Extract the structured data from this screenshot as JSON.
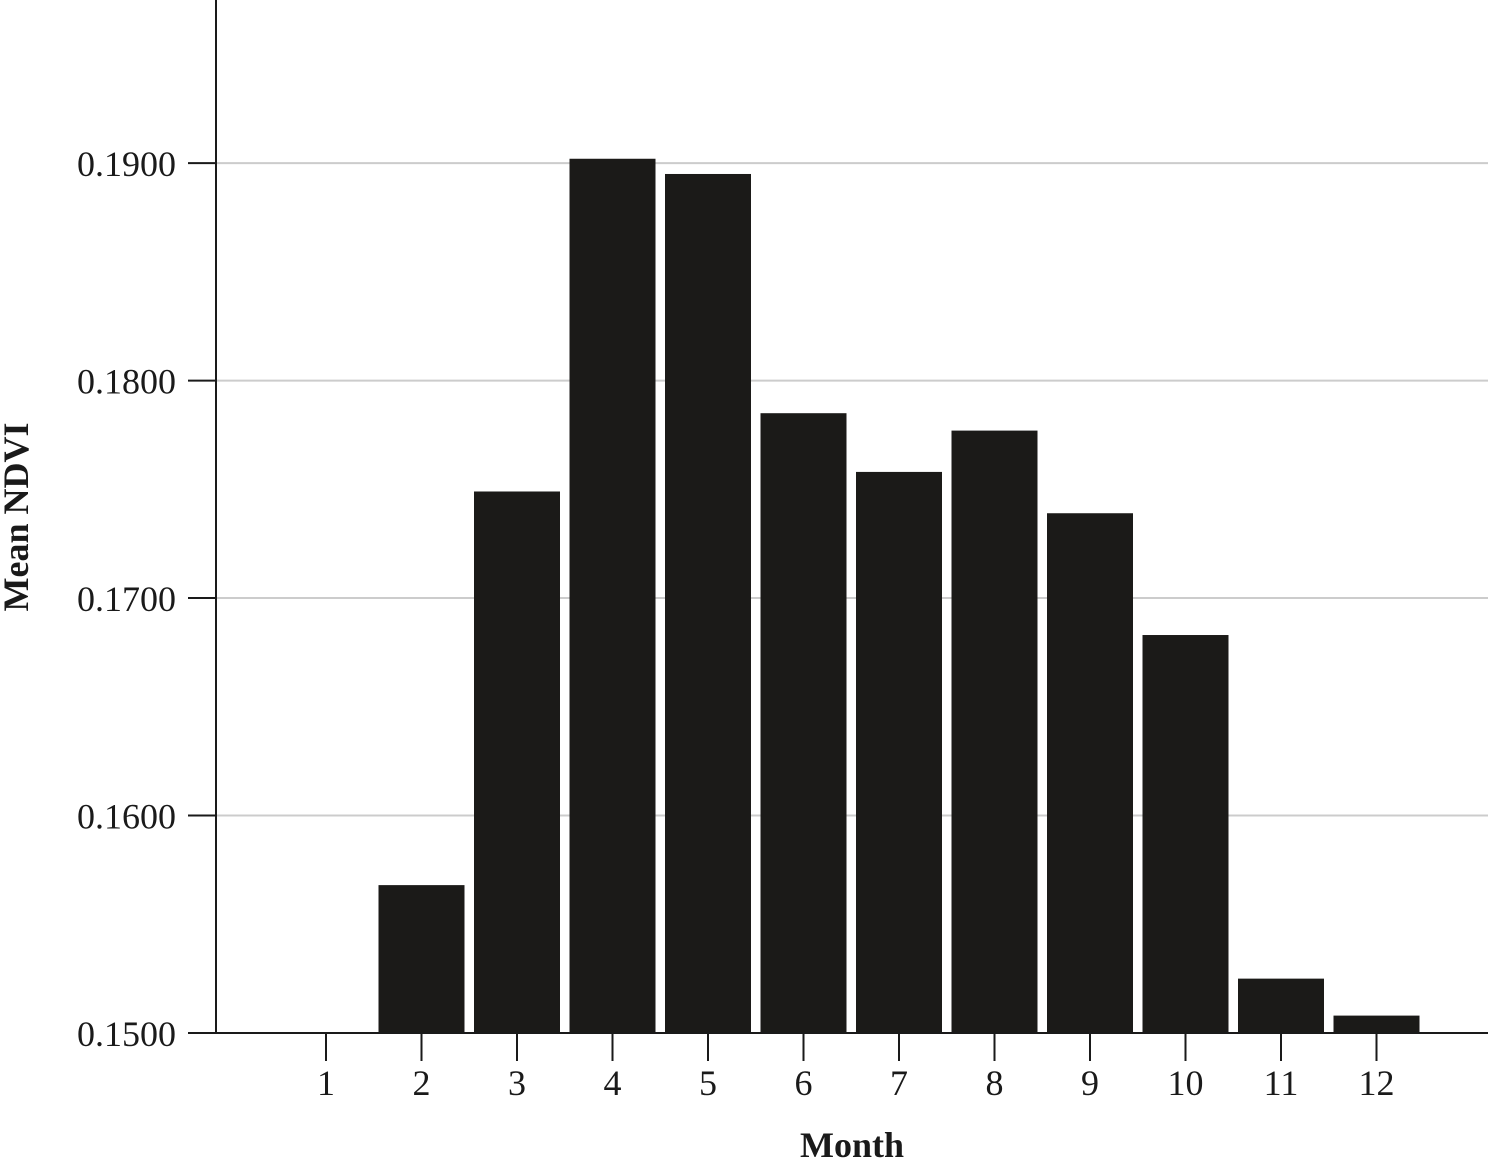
{
  "chart_data": {
    "type": "bar",
    "title": "",
    "xlabel": "Month",
    "ylabel": "Mean NDVI",
    "categories": [
      "1",
      "2",
      "3",
      "4",
      "5",
      "6",
      "7",
      "8",
      "9",
      "10",
      "11",
      "12"
    ],
    "values": [
      0.15,
      0.1568,
      0.1749,
      0.1902,
      0.1895,
      0.1785,
      0.1758,
      0.1777,
      0.1739,
      0.1683,
      0.1525,
      0.1508
    ],
    "yticks": [
      0.15,
      0.16,
      0.17,
      0.18,
      0.19
    ],
    "ytick_labels": [
      "0.1500",
      "0.1600",
      "0.1700",
      "0.1800",
      "0.1900"
    ],
    "ylim": [
      0.15,
      0.1975
    ],
    "grid": "horizontal",
    "legend": "none",
    "colors": {
      "bar": "#1b1a18",
      "grid": "#cccccc",
      "axis": "#1a1a1a"
    }
  }
}
